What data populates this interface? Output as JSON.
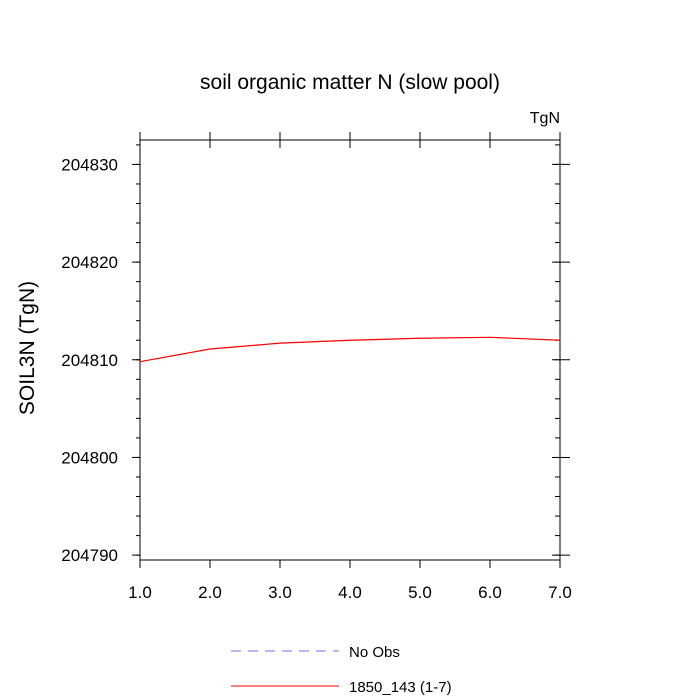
{
  "chart_data": {
    "type": "line",
    "title": "soil organic matter N (slow pool)",
    "units_label": "TgN",
    "ylabel": "SOIL3N  (TgN)",
    "xlabel": "",
    "xlim": [
      1.0,
      7.0
    ],
    "ylim": [
      204789.5,
      204832.5
    ],
    "x_ticks": [
      1.0,
      2.0,
      3.0,
      4.0,
      5.0,
      6.0,
      7.0
    ],
    "x_tick_labels": [
      "1.0",
      "2.0",
      "3.0",
      "4.0",
      "5.0",
      "6.0",
      "7.0"
    ],
    "y_ticks": [
      204790,
      204800,
      204810,
      204820,
      204830
    ],
    "y_tick_labels": [
      "204790",
      "204800",
      "204810",
      "204820",
      "204830"
    ],
    "y_minor_step": 2,
    "grid": false,
    "legend_position": "bottom",
    "series": [
      {
        "name": "No Obs",
        "color": "#7070e0",
        "dash": "dashed",
        "x": [],
        "y": []
      },
      {
        "name": "1850_143 (1-7)",
        "color": "#ff0000",
        "dash": "solid",
        "x": [
          1,
          2,
          3,
          4,
          5,
          6,
          7
        ],
        "y": [
          204809.8,
          204811.1,
          204811.7,
          204812.0,
          204812.2,
          204812.3,
          204812.0
        ]
      }
    ]
  }
}
